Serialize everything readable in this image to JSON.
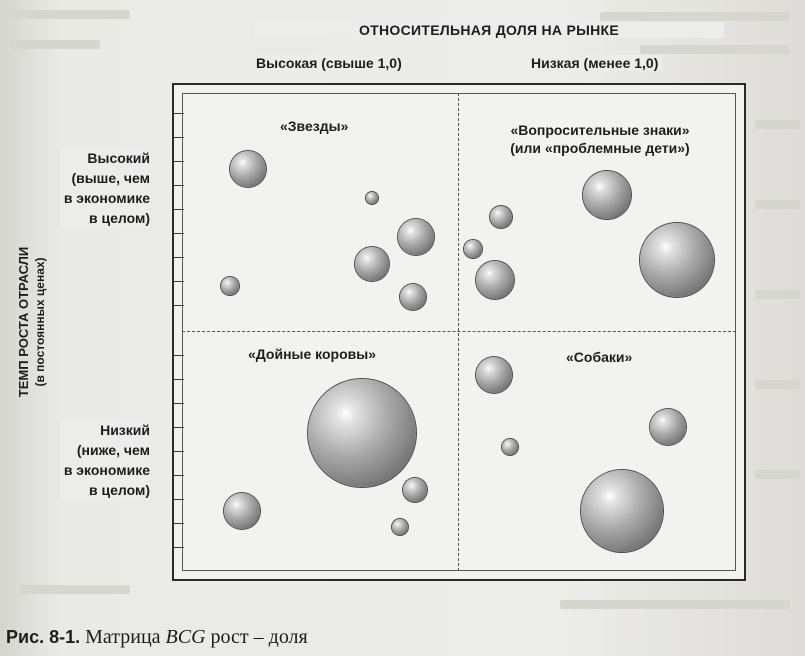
{
  "header": {
    "title": "ОТНОСИТЕЛЬНАЯ ДОЛЯ НА РЫНКЕ",
    "col_high": "Высокая (свыше 1,0)",
    "col_low": "Низкая (менее 1,0)"
  },
  "y_axis": {
    "title": "ТЕМП РОСТА ОТРАСЛИ",
    "subtitle": "(в постоянных ценах)",
    "high": [
      "Высокий",
      "(выше, чем",
      "в экономике",
      "в целом)"
    ],
    "low": [
      "Низкий",
      "(ниже, чем",
      "в экономике",
      "в целом)"
    ]
  },
  "quadrants": {
    "stars": "«Звезды»",
    "question_marks": [
      "«Вопросительные знаки»",
      "(или «проблемные дети»)"
    ],
    "cash_cows": "«Дойные коровы»",
    "dogs": "«Собаки»"
  },
  "caption": {
    "number": "Рис. 8-1.",
    "text_before": "Матрица ",
    "italic": "BCG",
    "text_after": " рост – доля"
  }
}
